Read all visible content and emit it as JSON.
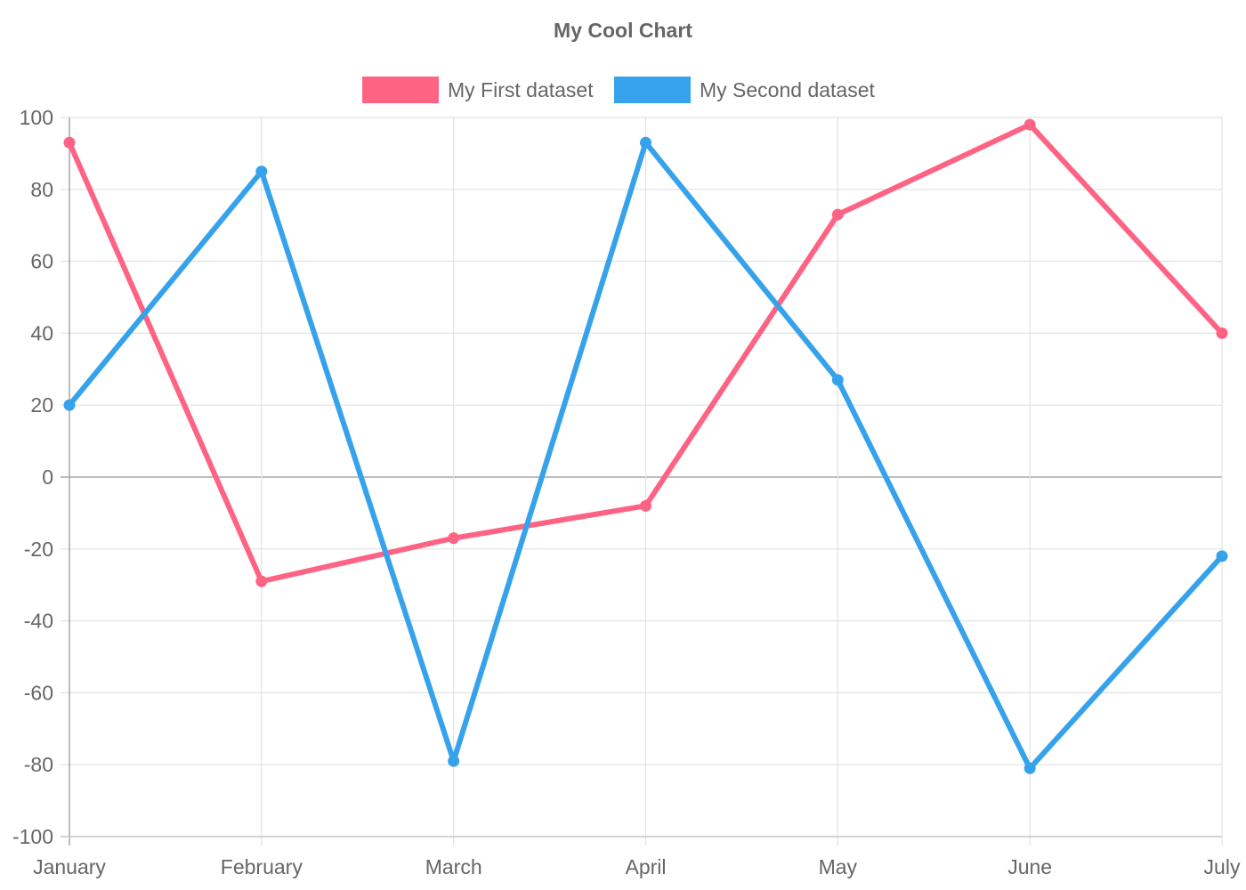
{
  "chart_data": {
    "type": "line",
    "title": "My Cool Chart",
    "categories": [
      "January",
      "February",
      "March",
      "April",
      "May",
      "June",
      "July"
    ],
    "series": [
      {
        "name": "My First dataset",
        "color": "#ff6384",
        "values": [
          93,
          -29,
          -17,
          -8,
          73,
          98,
          40
        ]
      },
      {
        "name": "My Second dataset",
        "color": "#36a2eb",
        "values": [
          20,
          85,
          -79,
          93,
          27,
          -81,
          -22
        ]
      }
    ],
    "y_ticks": [
      "100",
      "80",
      "60",
      "40",
      "20",
      "0",
      "-20",
      "-40",
      "-60",
      "-80",
      "-100"
    ],
    "ylim": [
      -100,
      100
    ],
    "grid": true,
    "legend_position": "top"
  }
}
